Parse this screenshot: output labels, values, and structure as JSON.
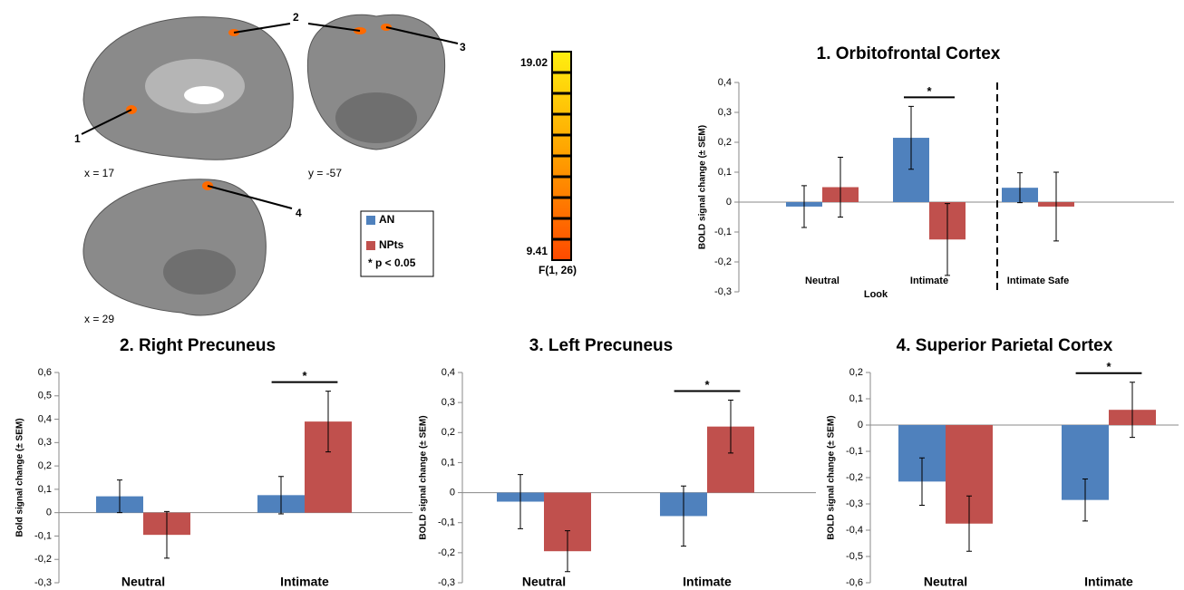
{
  "brain_panel": {
    "markers": [
      "1",
      "2",
      "3",
      "4"
    ],
    "slice_labels": [
      "x = 17",
      "y = -57",
      "x = 29"
    ]
  },
  "colorbar": {
    "max_label": "19.02",
    "min_label": "9.41",
    "label": "F(1, 26)"
  },
  "legend": {
    "note": "* p < 0.05"
  },
  "chart_data": [
    {
      "type": "bar",
      "title": "1. Orbitofrontal Cortex",
      "y_label": "BOLD signal change (± SEM)",
      "categories": [
        "Neutral",
        "Intimate",
        "Intimate Safe"
      ],
      "group_label": "Look",
      "series": [
        {
          "name": "AN",
          "color": "#4f81bd",
          "values": [
            -0.015,
            0.215,
            0.048
          ],
          "errors": [
            0.07,
            0.105,
            0.05
          ]
        },
        {
          "name": "NPts",
          "color": "#c0504d",
          "values": [
            0.05,
            -0.125,
            -0.015
          ],
          "errors": [
            0.1,
            0.12,
            0.115
          ]
        }
      ],
      "ylim": [
        -0.3,
        0.4
      ],
      "yticks": [
        {
          "value": -0.3,
          "label": "-0,3"
        },
        {
          "value": -0.2,
          "label": "-0,2"
        },
        {
          "value": -0.1,
          "label": "-0,1"
        },
        0,
        {
          "value": 0.1,
          "label": "0,1"
        },
        {
          "value": 0.2,
          "label": "0,2"
        },
        {
          "value": 0.3,
          "label": "0,3"
        },
        {
          "value": 0.4,
          "label": "0,4"
        }
      ],
      "annotations": [
        {
          "text": "*",
          "category": "Intimate"
        }
      ]
    },
    {
      "type": "bar",
      "title": "2. Right Precuneus",
      "y_label": "Bold signal change (± SEM)",
      "categories": [
        "Neutral",
        "Intimate"
      ],
      "series": [
        {
          "name": "AN",
          "color": "#4f81bd",
          "values": [
            0.07,
            0.075
          ],
          "errors": [
            0.07,
            0.08
          ]
        },
        {
          "name": "NPts",
          "color": "#c0504d",
          "values": [
            -0.095,
            0.39
          ],
          "errors": [
            0.1,
            0.13
          ]
        }
      ],
      "ylim": [
        -0.3,
        0.6
      ],
      "yticks": [
        {
          "value": -0.3,
          "label": "-0,3"
        },
        {
          "value": -0.2,
          "label": "-0,2"
        },
        {
          "value": -0.1,
          "label": "-0,1"
        },
        0,
        {
          "value": 0.1,
          "label": "0,1"
        },
        {
          "value": 0.2,
          "label": "0,2"
        },
        {
          "value": 0.3,
          "label": "0,3"
        },
        {
          "value": 0.4,
          "label": "0,4"
        },
        {
          "value": 0.5,
          "label": "0,5"
        },
        {
          "value": 0.6,
          "label": "0,6"
        }
      ],
      "annotations": [
        {
          "text": "*",
          "category": "Intimate"
        }
      ]
    },
    {
      "type": "bar",
      "title": "3. Left Precuneus",
      "y_label": "BOLD signal change (± SEM)",
      "categories": [
        "Neutral",
        "Intimate"
      ],
      "series": [
        {
          "name": "AN",
          "color": "#4f81bd",
          "values": [
            -0.03,
            -0.078
          ],
          "errors": [
            0.09,
            0.1
          ]
        },
        {
          "name": "NPts",
          "color": "#c0504d",
          "values": [
            -0.195,
            0.22
          ],
          "errors": [
            0.068,
            0.088
          ]
        }
      ],
      "ylim": [
        -0.3,
        0.4
      ],
      "yticks": [
        {
          "value": -0.3,
          "label": "-0,3"
        },
        {
          "value": -0.2,
          "label": "-0,2"
        },
        {
          "value": -0.1,
          "label": "-0,1"
        },
        0,
        {
          "value": 0.1,
          "label": "0,1"
        },
        {
          "value": 0.2,
          "label": "0,2"
        },
        {
          "value": 0.3,
          "label": "0,3"
        },
        {
          "value": 0.4,
          "label": "0,4"
        }
      ],
      "annotations": [
        {
          "text": "*",
          "category": "Intimate"
        }
      ]
    },
    {
      "type": "bar",
      "title": "4. Superior Parietal Cortex",
      "y_label": "BOLD signal change (± SEM)",
      "categories": [
        "Neutral",
        "Intimate"
      ],
      "series": [
        {
          "name": "AN",
          "color": "#4f81bd",
          "values": [
            -0.215,
            -0.285
          ],
          "errors": [
            0.09,
            0.08
          ]
        },
        {
          "name": "NPts",
          "color": "#c0504d",
          "values": [
            -0.375,
            0.058
          ],
          "errors": [
            0.105,
            0.105
          ]
        }
      ],
      "ylim": [
        -0.6,
        0.2
      ],
      "yticks": [
        {
          "value": -0.6,
          "label": "-0,6"
        },
        {
          "value": -0.5,
          "label": "-0,5"
        },
        {
          "value": -0.4,
          "label": "-0,4"
        },
        {
          "value": -0.3,
          "label": "-0,3"
        },
        {
          "value": -0.2,
          "label": "-0,2"
        },
        {
          "value": -0.1,
          "label": "-0,1"
        },
        0,
        {
          "value": 0.1,
          "label": "0,1"
        },
        {
          "value": 0.2,
          "label": "0,2"
        }
      ],
      "annotations": [
        {
          "text": "*",
          "category": "Intimate"
        }
      ]
    }
  ]
}
